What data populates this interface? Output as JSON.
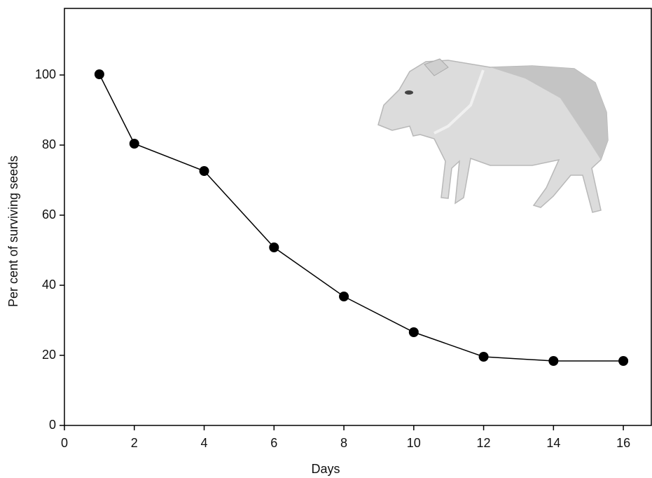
{
  "chart_data": {
    "type": "line",
    "xlabel": "Days",
    "ylabel": "Per cent of surviving seeds",
    "x": [
      1,
      2,
      4,
      6,
      8,
      10,
      12,
      14,
      16
    ],
    "series": [
      {
        "color": "#000000",
        "values": [
          100.2,
          80.4,
          72.6,
          50.8,
          36.8,
          26.6,
          19.6,
          18.4,
          18.4
        ]
      }
    ],
    "xlim": [
      0,
      16.8
    ],
    "xticks": [
      0,
      2,
      4,
      6,
      8,
      10,
      12,
      14,
      16
    ],
    "ylim": [
      0,
      119
    ],
    "yticks": [
      0,
      20,
      40,
      60,
      80,
      100
    ],
    "grid": false
  }
}
